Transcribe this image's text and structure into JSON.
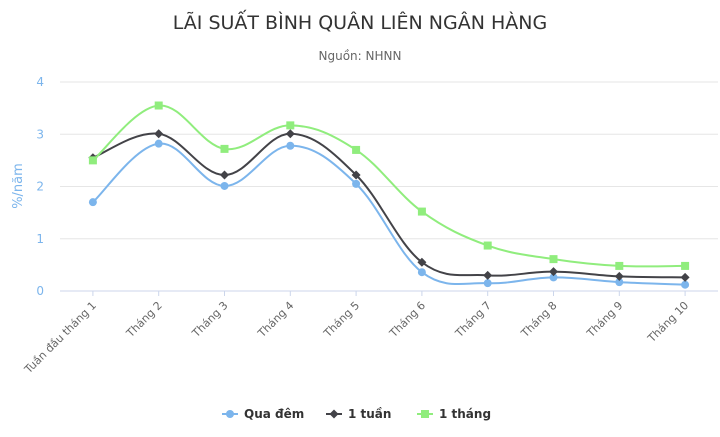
{
  "chart_data": {
    "type": "line",
    "title": "LÃI SUẤT BÌNH QUÂN LIÊN NGÂN HÀNG",
    "subtitle": "Nguồn: NHNN",
    "ylabel": "%/năm",
    "xlabel": "",
    "ylim": [
      0,
      4
    ],
    "yticks": [
      0,
      1,
      2,
      3,
      4
    ],
    "categories": [
      "Tuần đầu tháng 1",
      "Tháng 2",
      "Tháng 3",
      "Tháng 4",
      "Tháng 5",
      "Tháng 6",
      "Tháng 7",
      "Tháng 8",
      "Tháng 9",
      "Tháng 10"
    ],
    "series": [
      {
        "name": "Qua đêm",
        "color": "#7cb5ec",
        "marker": "circle",
        "values": [
          1.7,
          2.82,
          2.01,
          2.78,
          2.05,
          0.36,
          0.15,
          0.26,
          0.17,
          0.12
        ]
      },
      {
        "name": "1 tuần",
        "color": "#434348",
        "marker": "diamond",
        "values": [
          2.55,
          3.01,
          2.22,
          3.01,
          2.22,
          0.55,
          0.3,
          0.37,
          0.28,
          0.26
        ]
      },
      {
        "name": "1 tháng",
        "color": "#90ed7d",
        "marker": "square",
        "values": [
          2.5,
          3.55,
          2.72,
          3.17,
          2.7,
          1.52,
          0.87,
          0.61,
          0.48,
          0.48
        ]
      }
    ],
    "grid": true,
    "legend_position": "bottom"
  }
}
